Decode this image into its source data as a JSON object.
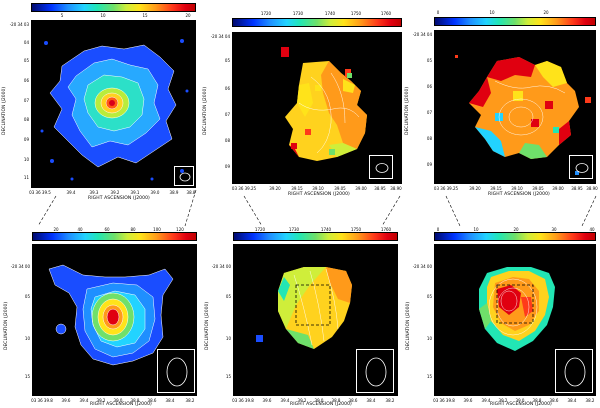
{
  "axis_titles": {
    "x": "RIGHT ASCENSION (J2000)",
    "y": "DECLINATION (J2000)"
  },
  "panels": [
    {
      "colorbar_ticks": [
        "5",
        "10",
        "15",
        "20"
      ],
      "y_ticks": [
        "-20 34 03",
        "04",
        "05",
        "06",
        "07",
        "08",
        "09",
        "10",
        "11"
      ],
      "x_ticks": [
        "03 36 39.5",
        "39.4",
        "39.3",
        "39.2",
        "39.1",
        "39.0",
        "38.9",
        "38.8"
      ]
    },
    {
      "colorbar_ticks": [
        "1720",
        "1730",
        "1740",
        "1750",
        "1760"
      ],
      "y_ticks": [
        "-20 34 04",
        "05",
        "06",
        "07",
        "08",
        "09"
      ],
      "x_ticks": [
        "03 36 39.25",
        "39.20",
        "39.15",
        "39.10",
        "39.05",
        "39.00",
        "38.95",
        "38.90"
      ]
    },
    {
      "colorbar_ticks": [
        "0",
        "10",
        "20"
      ],
      "y_ticks": [
        "-20 34 04",
        "05",
        "06",
        "07",
        "08",
        "09"
      ],
      "x_ticks": [
        "03 36 39.25",
        "39.20",
        "39.15",
        "39.10",
        "39.05",
        "39.00",
        "38.95",
        "38.90"
      ]
    },
    {
      "colorbar_ticks": [
        "20",
        "40",
        "60",
        "80",
        "100",
        "120"
      ],
      "y_ticks": [
        "-20 34 00",
        "05",
        "10",
        "15"
      ],
      "x_ticks": [
        "03 36 39.8",
        "39.6",
        "39.4",
        "39.2",
        "39.0",
        "38.8",
        "38.6",
        "38.4",
        "38.2"
      ]
    },
    {
      "colorbar_ticks": [
        "1720",
        "1730",
        "1740",
        "1750",
        "1760"
      ],
      "y_ticks": [
        "-20 34 00",
        "05",
        "10",
        "15"
      ],
      "x_ticks": [
        "03 36 39.8",
        "39.6",
        "39.4",
        "39.2",
        "39.0",
        "38.8",
        "38.6",
        "38.4",
        "38.2"
      ]
    },
    {
      "colorbar_ticks": [
        "0",
        "10",
        "20",
        "30",
        "40"
      ],
      "y_ticks": [
        "-20 34 00",
        "05",
        "10",
        "15"
      ],
      "x_ticks": [
        "03 36 39.8",
        "39.6",
        "39.4",
        "39.2",
        "39.0",
        "38.8",
        "38.6",
        "38.4",
        "38.2"
      ]
    }
  ]
}
